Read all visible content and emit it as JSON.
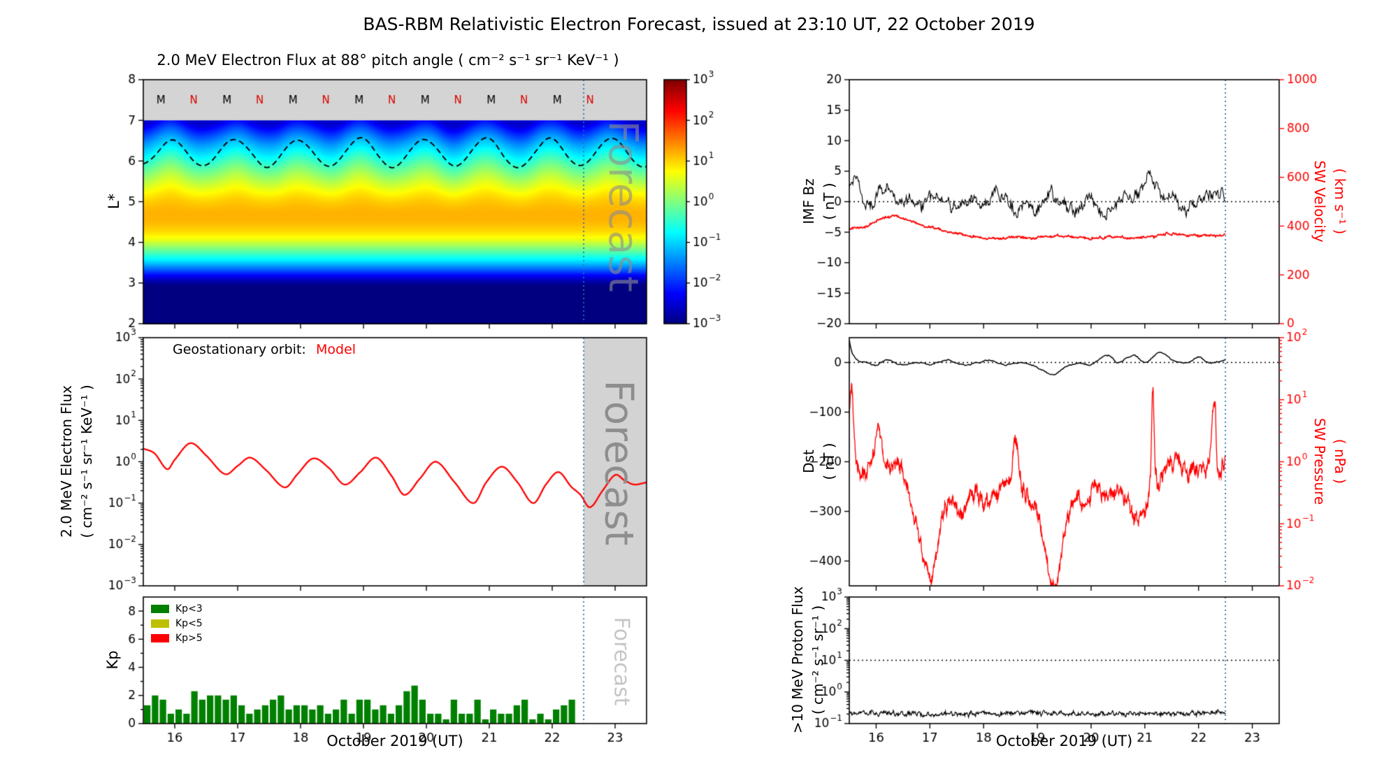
{
  "page": {
    "title": "BAS-RBM Relativistic Electron Forecast, issued at 23:10 UT, 22 October 2019"
  },
  "labels": {
    "forecast": "Forecast"
  },
  "colors": {
    "model_red": "#ff0000",
    "axis_red": "#ff0000",
    "forecast_line": "#1f77b4",
    "shade_gray": "#d3d3d3",
    "band_gray": "#d4d4d4",
    "kp_green": "#008000",
    "kp_yellow": "#bfbf00",
    "kp_red": "#ff0000",
    "marker_m_black": "#000000",
    "marker_n_red": "#dd0000"
  },
  "time_axis": {
    "min": 15.5,
    "max": 23.5,
    "ticks": [
      16,
      17,
      18,
      19,
      20,
      21,
      22,
      23
    ],
    "label": "October 2019 (UT)",
    "forecast_start_day": 22.5
  },
  "chart_data": [
    {
      "id": "lstar_heatmap",
      "type": "heatmap",
      "title": "2.0 MeV Electron Flux at 88° pitch angle ( cm⁻² s⁻¹ sr⁻¹ KeV⁻¹ )",
      "ylabel": "L*",
      "ylim": [
        2,
        8
      ],
      "yticks": [
        2,
        3,
        4,
        5,
        6,
        7,
        8
      ],
      "clim_log10": [
        -3,
        3
      ],
      "colorbar_tick_exponents": [
        3,
        2,
        1,
        0,
        -1,
        -2,
        -3
      ],
      "flux_profile_log10_vs_lstar": [
        [
          2,
          -3
        ],
        [
          2.9,
          -3
        ],
        [
          3.1,
          -2.55
        ],
        [
          3.3,
          -1.8
        ],
        [
          3.5,
          -1.05
        ],
        [
          3.7,
          -0.45
        ],
        [
          3.9,
          0.15
        ],
        [
          4.1,
          0.7
        ],
        [
          4.4,
          1.1
        ],
        [
          4.7,
          1.2
        ],
        [
          5.0,
          1.05
        ],
        [
          5.3,
          0.7
        ],
        [
          5.6,
          0.25
        ],
        [
          5.9,
          -0.25
        ],
        [
          6.2,
          -0.8
        ],
        [
          6.5,
          -1.35
        ],
        [
          6.8,
          -2.05
        ],
        [
          7.0,
          -2.55
        ]
      ],
      "wiggle": {
        "amplitude_l": 0.13,
        "period_days": 1,
        "peak_day": 15.95,
        "applies_above_l": 4.5
      },
      "dashed_line": {
        "mean_l": 6.2,
        "amplitude_l": 0.33,
        "period_days": 1,
        "peak_day": 15.95
      },
      "top_band": {
        "l_range": [
          7,
          8
        ],
        "markers": [
          {
            "t": 15.78,
            "label": "M",
            "color": "#000000"
          },
          {
            "t": 16.3,
            "label": "N",
            "color": "#dd0000"
          },
          {
            "t": 16.83,
            "label": "M",
            "color": "#000000"
          },
          {
            "t": 17.35,
            "label": "N",
            "color": "#dd0000"
          },
          {
            "t": 17.88,
            "label": "M",
            "color": "#000000"
          },
          {
            "t": 18.4,
            "label": "N",
            "color": "#dd0000"
          },
          {
            "t": 18.93,
            "label": "M",
            "color": "#000000"
          },
          {
            "t": 19.45,
            "label": "N",
            "color": "#dd0000"
          },
          {
            "t": 19.98,
            "label": "M",
            "color": "#000000"
          },
          {
            "t": 20.5,
            "label": "N",
            "color": "#dd0000"
          },
          {
            "t": 21.03,
            "label": "M",
            "color": "#000000"
          },
          {
            "t": 21.55,
            "label": "N",
            "color": "#dd0000"
          },
          {
            "t": 22.08,
            "label": "M",
            "color": "#000000"
          },
          {
            "t": 22.6,
            "label": "N",
            "color": "#dd0000"
          }
        ]
      }
    },
    {
      "id": "geo_electron_flux",
      "type": "line",
      "legend_prefix": "Geostationary orbit:",
      "legend_series": "Model",
      "ylabel": [
        "2.0 MeV Electron Flux",
        "( cm⁻² s⁻¹ sr⁻¹ KeV⁻¹ )"
      ],
      "ylog_range_exponents": [
        -3,
        3
      ],
      "forecast_shaded": true,
      "series": {
        "name": "Model",
        "color": "#ff0000",
        "keyframes_log10": [
          [
            15.5,
            0.32
          ],
          [
            15.68,
            0.2
          ],
          [
            15.88,
            -0.18
          ],
          [
            16.0,
            0.05
          ],
          [
            16.25,
            0.45
          ],
          [
            16.5,
            0.15
          ],
          [
            16.8,
            -0.3
          ],
          [
            17.0,
            -0.1
          ],
          [
            17.2,
            0.1
          ],
          [
            17.45,
            -0.2
          ],
          [
            17.75,
            -0.62
          ],
          [
            17.95,
            -0.3
          ],
          [
            18.2,
            0.08
          ],
          [
            18.45,
            -0.15
          ],
          [
            18.7,
            -0.55
          ],
          [
            18.95,
            -0.25
          ],
          [
            19.2,
            0.1
          ],
          [
            19.45,
            -0.35
          ],
          [
            19.65,
            -0.8
          ],
          [
            19.9,
            -0.4
          ],
          [
            20.15,
            0.0
          ],
          [
            20.45,
            -0.5
          ],
          [
            20.75,
            -1.0
          ],
          [
            20.95,
            -0.5
          ],
          [
            21.2,
            -0.12
          ],
          [
            21.45,
            -0.5
          ],
          [
            21.7,
            -1.0
          ],
          [
            21.9,
            -0.55
          ],
          [
            22.1,
            -0.25
          ],
          [
            22.3,
            -0.6
          ],
          [
            22.45,
            -0.8
          ],
          [
            22.6,
            -1.1
          ],
          [
            22.8,
            -0.7
          ],
          [
            23.0,
            -0.32
          ],
          [
            23.15,
            -0.45
          ],
          [
            23.3,
            -0.55
          ],
          [
            23.5,
            -0.5
          ]
        ]
      }
    },
    {
      "id": "kp_index",
      "type": "bar",
      "ylabel": "Kp",
      "ylim": [
        0,
        9
      ],
      "yticks": [
        0,
        2,
        4,
        6,
        8
      ],
      "t_start": 15.5,
      "dt_days": 0.125,
      "values": [
        1.3,
        2,
        1.7,
        0.7,
        1,
        0.7,
        2.3,
        1.7,
        2,
        2,
        1.7,
        2,
        1.3,
        0.7,
        1,
        1.3,
        1.7,
        2,
        1,
        1.3,
        1.3,
        1,
        1.3,
        0.7,
        1,
        1.7,
        0.7,
        1.7,
        1.7,
        1,
        1.3,
        0.7,
        1.3,
        2.3,
        2.7,
        1.7,
        0.7,
        0.7,
        0.3,
        1.7,
        0.7,
        0.7,
        1.7,
        0.3,
        1,
        0.7,
        0.7,
        1.3,
        1.7,
        0.3,
        0.7,
        0.3,
        1,
        1.3,
        1.7
      ],
      "legend": [
        {
          "label": "Kp<3",
          "color": "#008000"
        },
        {
          "label": "Kp<5",
          "color": "#bfbf00"
        },
        {
          "label": "Kp>5",
          "color": "#ff0000"
        }
      ],
      "xlabel": "October 2019 (UT)"
    },
    {
      "id": "imf_solar_wind",
      "type": "line",
      "data_end_day": 22.5,
      "left_axis": {
        "label": [
          "IMF Bz",
          "( nT )"
        ],
        "ylim": [
          -20,
          20
        ],
        "yticks": [
          -20,
          -15,
          -10,
          -5,
          0,
          5,
          10,
          15,
          20
        ],
        "hline": 0
      },
      "right_axis": {
        "label": [
          "SW Velocity",
          "( km s⁻¹ )"
        ],
        "ylim": [
          0,
          1000
        ],
        "yticks": [
          0,
          200,
          400,
          600,
          800,
          1000
        ]
      },
      "series": [
        {
          "name": "IMF Bz",
          "axis": "left",
          "color": "#000000",
          "noise_amp": 1.5,
          "keyframes": [
            [
              15.5,
              2.5
            ],
            [
              15.65,
              3.5
            ],
            [
              15.8,
              -0.5
            ],
            [
              16.0,
              1.0
            ],
            [
              16.2,
              2.0
            ],
            [
              16.4,
              -0.5
            ],
            [
              16.6,
              0.5
            ],
            [
              16.8,
              -0.5
            ],
            [
              17.0,
              1.0
            ],
            [
              17.2,
              0.0
            ],
            [
              17.5,
              -1.0
            ],
            [
              17.8,
              0.5
            ],
            [
              18.0,
              -0.5
            ],
            [
              18.2,
              1.5
            ],
            [
              18.4,
              0.5
            ],
            [
              18.6,
              -1.5
            ],
            [
              18.8,
              0.0
            ],
            [
              19.0,
              -2.0
            ],
            [
              19.2,
              1.5
            ],
            [
              19.4,
              0.5
            ],
            [
              19.6,
              -1.5
            ],
            [
              19.8,
              -0.5
            ],
            [
              20.0,
              0.5
            ],
            [
              20.2,
              -2.5
            ],
            [
              20.4,
              -1.0
            ],
            [
              20.6,
              1.0
            ],
            [
              20.8,
              0.5
            ],
            [
              21.0,
              3.0
            ],
            [
              21.1,
              4.0
            ],
            [
              21.3,
              1.5
            ],
            [
              21.5,
              0.5
            ],
            [
              21.7,
              -1.0
            ],
            [
              21.9,
              -0.5
            ],
            [
              22.1,
              0.5
            ],
            [
              22.3,
              1.5
            ],
            [
              22.5,
              1.0
            ]
          ]
        },
        {
          "name": "SW Velocity",
          "axis": "right",
          "color": "#ff0000",
          "noise_amp": 8,
          "keyframes": [
            [
              15.5,
              390
            ],
            [
              15.8,
              400
            ],
            [
              16.1,
              430
            ],
            [
              16.35,
              440
            ],
            [
              16.6,
              420
            ],
            [
              16.9,
              400
            ],
            [
              17.2,
              385
            ],
            [
              17.5,
              370
            ],
            [
              17.8,
              360
            ],
            [
              18.1,
              350
            ],
            [
              18.5,
              355
            ],
            [
              18.9,
              350
            ],
            [
              19.3,
              360
            ],
            [
              19.7,
              355
            ],
            [
              20.1,
              350
            ],
            [
              20.5,
              355
            ],
            [
              20.9,
              350
            ],
            [
              21.2,
              360
            ],
            [
              21.5,
              370
            ],
            [
              21.8,
              365
            ],
            [
              22.1,
              360
            ],
            [
              22.5,
              365
            ]
          ]
        }
      ]
    },
    {
      "id": "dst_pressure",
      "type": "line",
      "data_end_day": 22.5,
      "left_axis": {
        "label": [
          "Dst",
          "( nT )"
        ],
        "ylim": [
          -450,
          50
        ],
        "yticks": [
          0,
          -100,
          -200,
          -300,
          -400
        ],
        "hline": 0
      },
      "right_axis": {
        "label": [
          "SW Pressure",
          "( nPa )"
        ],
        "ylog_range_exponents": [
          -2,
          2
        ]
      },
      "series": [
        {
          "name": "Dst",
          "axis": "left",
          "color": "#000000",
          "noise_amp": 2,
          "keyframes": [
            [
              15.5,
              45
            ],
            [
              15.55,
              20
            ],
            [
              15.65,
              5
            ],
            [
              15.8,
              0
            ],
            [
              16.0,
              -5
            ],
            [
              16.2,
              5
            ],
            [
              16.5,
              -5
            ],
            [
              16.8,
              0
            ],
            [
              17.0,
              -5
            ],
            [
              17.3,
              5
            ],
            [
              17.6,
              -5
            ],
            [
              17.9,
              0
            ],
            [
              18.1,
              5
            ],
            [
              18.4,
              -5
            ],
            [
              18.7,
              0
            ],
            [
              19.0,
              -10
            ],
            [
              19.3,
              -25
            ],
            [
              19.5,
              -10
            ],
            [
              19.8,
              0
            ],
            [
              20.0,
              -5
            ],
            [
              20.3,
              15
            ],
            [
              20.5,
              0
            ],
            [
              20.8,
              15
            ],
            [
              21.0,
              0
            ],
            [
              21.3,
              20
            ],
            [
              21.5,
              5
            ],
            [
              21.8,
              0
            ],
            [
              22.0,
              10
            ],
            [
              22.2,
              0
            ],
            [
              22.5,
              5
            ]
          ]
        },
        {
          "name": "SW Pressure",
          "axis": "right",
          "color": "#ff0000",
          "noise_amp": 0.18,
          "keyframes_log10": [
            [
              15.5,
              0.8
            ],
            [
              15.55,
              1.2
            ],
            [
              15.6,
              0.2
            ],
            [
              15.8,
              -0.2
            ],
            [
              16.0,
              0.3
            ],
            [
              16.05,
              0.5
            ],
            [
              16.2,
              -0.1
            ],
            [
              16.4,
              0.0
            ],
            [
              16.6,
              -0.5
            ],
            [
              16.9,
              -1.6
            ],
            [
              17.05,
              -1.8
            ],
            [
              17.2,
              -1.0
            ],
            [
              17.4,
              -0.6
            ],
            [
              17.6,
              -0.8
            ],
            [
              17.8,
              -0.5
            ],
            [
              18.0,
              -0.7
            ],
            [
              18.2,
              -0.5
            ],
            [
              18.5,
              -0.3
            ],
            [
              18.6,
              0.4
            ],
            [
              18.7,
              -0.4
            ],
            [
              19.0,
              -0.8
            ],
            [
              19.2,
              -1.7
            ],
            [
              19.35,
              -1.9
            ],
            [
              19.5,
              -1.2
            ],
            [
              19.7,
              -0.5
            ],
            [
              19.9,
              -0.7
            ],
            [
              20.1,
              -0.4
            ],
            [
              20.3,
              -0.6
            ],
            [
              20.5,
              -0.4
            ],
            [
              20.7,
              -0.7
            ],
            [
              20.9,
              -0.9
            ],
            [
              21.1,
              -0.3
            ],
            [
              21.15,
              1.1
            ],
            [
              21.2,
              -0.2
            ],
            [
              21.4,
              -0.1
            ],
            [
              21.6,
              0.0
            ],
            [
              21.8,
              -0.2
            ],
            [
              22.0,
              -0.1
            ],
            [
              22.2,
              0.0
            ],
            [
              22.3,
              0.9
            ],
            [
              22.35,
              -0.1
            ],
            [
              22.5,
              0.0
            ]
          ]
        }
      ]
    },
    {
      "id": "proton_flux",
      "type": "line",
      "data_end_day": 22.5,
      "ylabel": [
        ">10 MeV Proton Flux",
        "( cm⁻² s⁻¹ sr⁻¹ )"
      ],
      "ylog_range_exponents": [
        -1,
        3
      ],
      "hline_log10": 1,
      "series": {
        "name": ">10 MeV Proton Flux",
        "color": "#000000",
        "noise_amp": 0.1,
        "keyframes_log10": [
          [
            15.5,
            -0.66
          ],
          [
            17.0,
            -0.7
          ],
          [
            19.0,
            -0.68
          ],
          [
            21.0,
            -0.7
          ],
          [
            22.5,
            -0.66
          ]
        ]
      },
      "xlabel": "October 2019 (UT)"
    }
  ]
}
